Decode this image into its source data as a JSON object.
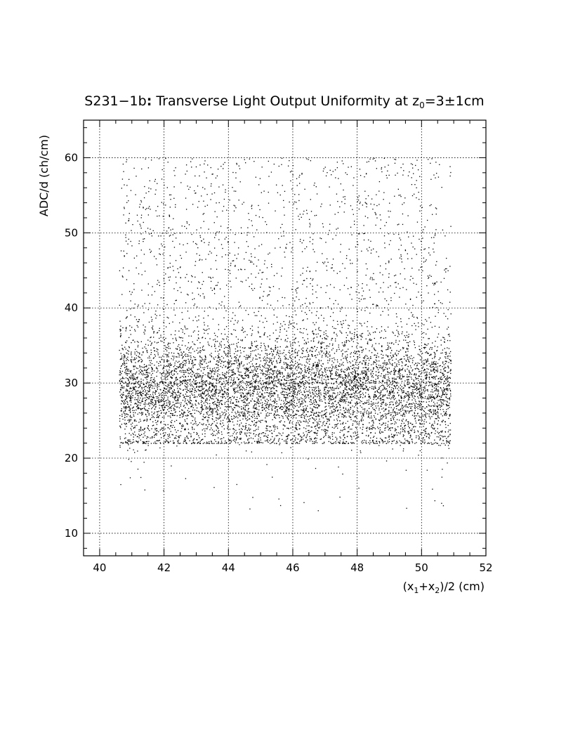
{
  "chart_data": {
    "type": "scatter",
    "title": {
      "main": "S231−1b",
      "colon": ":",
      "rest": " Transverse Light Output Uniformity at z",
      "sub": "0",
      "tail": "=3±1cm"
    },
    "xlabel": {
      "p1": "(x",
      "s1": "1",
      "p2": "+x",
      "s2": "2",
      "p3": ")/2 (cm)"
    },
    "ylabel": "ADC/d (ch/cm)",
    "xlim": [
      39.5,
      52
    ],
    "ylim": [
      7,
      65
    ],
    "xticks": [
      40,
      42,
      44,
      46,
      48,
      50,
      52
    ],
    "yticks": [
      10,
      20,
      30,
      40,
      50,
      60
    ],
    "x_tick_labels": [
      "40",
      "42",
      "44",
      "46",
      "48",
      "50",
      "52"
    ],
    "y_tick_labels": [
      "10",
      "20",
      "30",
      "40",
      "50",
      "60"
    ],
    "grid": true,
    "marker_color": "#000000",
    "distribution": {
      "x_range": [
        40.6,
        50.9
      ],
      "core_mean": 29.5,
      "core_spread": 3.5,
      "tail_range": [
        22,
        60
      ],
      "edge_low_tail": [
        13,
        22
      ],
      "approx_points": 9000
    }
  }
}
